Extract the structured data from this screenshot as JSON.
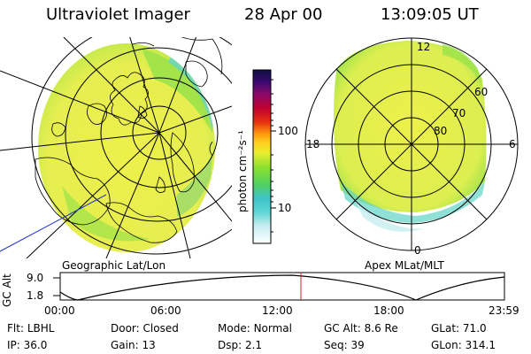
{
  "header": {
    "instrument": "Ultraviolet Imager",
    "date": "28 Apr 00",
    "time": "13:09:05 UT"
  },
  "left_panel": {
    "caption": "Geographic Lat/Lon"
  },
  "right_panel": {
    "caption": "Apex MLat/MLT",
    "mlt_labels": {
      "top": "12",
      "left": "18",
      "right": "6",
      "bottom": "0"
    },
    "mlat_labels": [
      "60",
      "70",
      "80"
    ]
  },
  "colorbar": {
    "unit_label": "photon cm⁻²s⁻¹",
    "ticks": [
      "100",
      "10"
    ]
  },
  "alt_plot": {
    "ylabel": "GC Alt",
    "yticks": [
      "9.0",
      "1.8"
    ],
    "xticks": [
      "00:00",
      "06:00",
      "12:00",
      "18:00",
      "23:59"
    ]
  },
  "status": {
    "row1": [
      {
        "label": "Flt:",
        "value": "LBHL"
      },
      {
        "label": "Door:",
        "value": "Closed"
      },
      {
        "label": "Mode:",
        "value": "Normal"
      },
      {
        "label": "GC Alt:",
        "value": "8.6 Re"
      },
      {
        "label": "GLat:",
        "value": "71.0"
      }
    ],
    "row2": [
      {
        "label": "IP:",
        "value": "36.0"
      },
      {
        "label": "Gain:",
        "value": "13"
      },
      {
        "label": "Dsp:",
        "value": "2.1"
      },
      {
        "label": "Seq:",
        "value": "39"
      },
      {
        "label": "GLon:",
        "value": "314.1"
      }
    ]
  },
  "colors": {
    "aurora_yellow": "#eef04a",
    "aurora_green": "#9ce24a",
    "aurora_cyan": "#5fd4c8",
    "marker_red": "#cc2222"
  }
}
